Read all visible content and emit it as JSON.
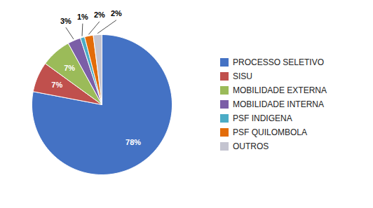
{
  "chart_data": {
    "type": "pie",
    "categories": [
      "PROCESSO SELETIVO",
      "SISU",
      "MOBILIDADE EXTERNA",
      "MOBILIDADE INTERNA",
      "PSF INDIGENA",
      "PSF QUILOMBOLA",
      "OUTROS"
    ],
    "values": [
      78,
      7,
      7,
      3,
      1,
      2,
      2
    ],
    "value_labels": [
      "78%",
      "7%",
      "7%",
      "3%",
      "1%",
      "2%",
      "2%"
    ],
    "colors": [
      "#4472C4",
      "#C0504D",
      "#9BBB59",
      "#7B5EA7",
      "#4BACC6",
      "#E36C09",
      "#C4C4D0"
    ],
    "data_labels": true,
    "legend": "right"
  }
}
